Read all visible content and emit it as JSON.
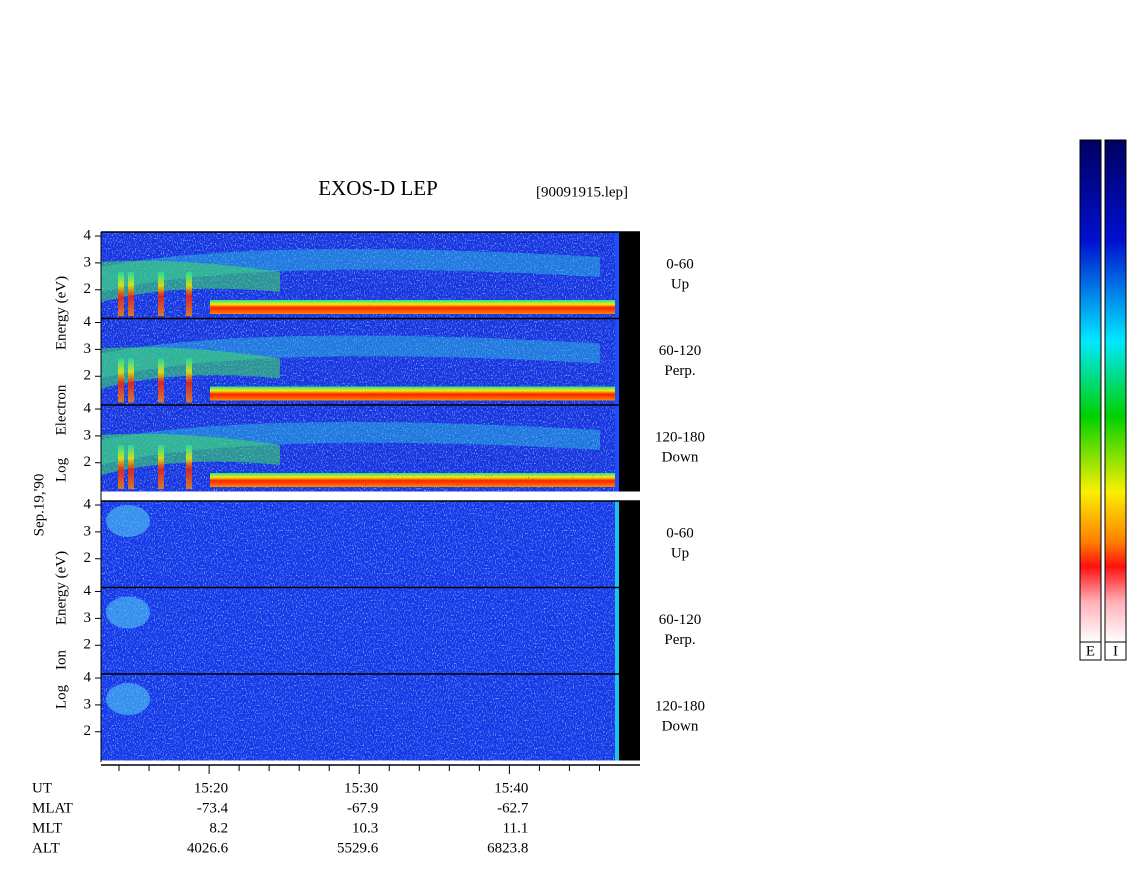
{
  "header": {
    "title": "EXOS-D LEP",
    "file": "[90091915.lep]",
    "date": "Sep.19,'90"
  },
  "groups": [
    {
      "axis_label": [
        "Log",
        "Electron",
        "Energy (eV)"
      ],
      "panels": [
        {
          "range": "0-60",
          "direction": "Up"
        },
        {
          "range": "60-120",
          "direction": "Perp."
        },
        {
          "range": "120-180",
          "direction": "Down"
        }
      ]
    },
    {
      "axis_label": [
        "Log",
        "Ion",
        "Energy (eV)"
      ],
      "panels": [
        {
          "range": "0-60",
          "direction": "Up"
        },
        {
          "range": "60-120",
          "direction": "Perp."
        },
        {
          "range": "120-180",
          "direction": "Down"
        }
      ]
    }
  ],
  "ylim": [
    0.93,
    4.15
  ],
  "yticks": [
    2,
    3,
    4
  ],
  "time_axis": {
    "label": "UT",
    "xlim": [
      912.8,
      948.7
    ],
    "ticks": [
      {
        "value": 920,
        "label": "15:20"
      },
      {
        "value": 930,
        "label": "15:30"
      },
      {
        "value": 940,
        "label": "15:40"
      }
    ],
    "minor_ticks": [
      914,
      916,
      918,
      922,
      924,
      926,
      928,
      932,
      934,
      936,
      938,
      942,
      944,
      946
    ]
  },
  "ephemeris": [
    {
      "label": "MLAT",
      "values": [
        -73.4,
        -67.9,
        -62.7
      ]
    },
    {
      "label": "MLT",
      "values": [
        8.2,
        10.3,
        11.1
      ]
    },
    {
      "label": "ALT",
      "values": [
        4026.6,
        5529.6,
        6823.8
      ]
    }
  ],
  "colorbar": {
    "labels": [
      "E",
      "I"
    ]
  }
}
